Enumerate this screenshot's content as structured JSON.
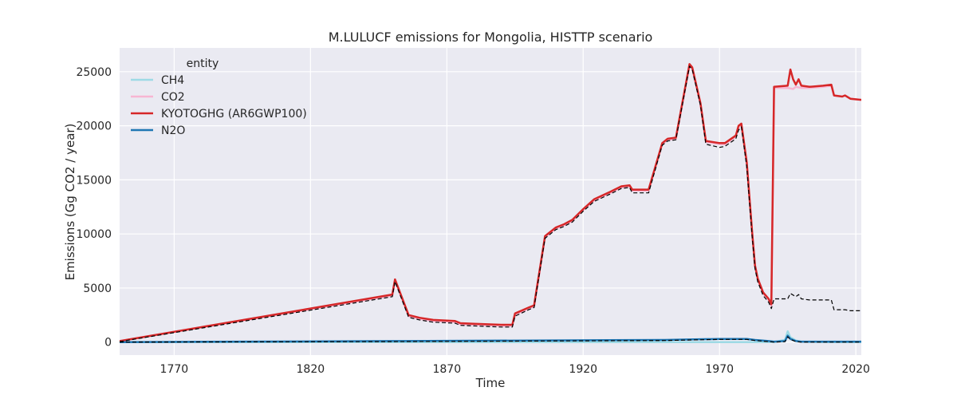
{
  "chart_data": {
    "type": "line",
    "title": "M.LULUCF emissions for Mongolia, HISTTP scenario",
    "xlabel": "Time",
    "ylabel": "Emissions (Gg CO2 / year)",
    "xlim": [
      1750,
      2022
    ],
    "ylim": [
      -1200,
      27200
    ],
    "xticks": [
      1770,
      1820,
      1870,
      1920,
      1970,
      2020
    ],
    "yticks": [
      0,
      5000,
      10000,
      15000,
      20000,
      25000
    ],
    "grid": true,
    "legend": {
      "title": "entity",
      "placement": "top-left"
    },
    "series": [
      {
        "name": "CH4",
        "color": "#9edae5",
        "width": 2.5,
        "points": [
          [
            1750,
            0
          ],
          [
            1850,
            0
          ],
          [
            1900,
            0
          ],
          [
            1950,
            0
          ],
          [
            1980,
            0
          ],
          [
            1990,
            10
          ],
          [
            1994,
            200
          ],
          [
            1995,
            1000
          ],
          [
            1996,
            450
          ],
          [
            1998,
            150
          ],
          [
            2000,
            30
          ],
          [
            2010,
            0
          ],
          [
            2022,
            0
          ]
        ]
      },
      {
        "name": "CO2",
        "color": "#f7b6d2",
        "width": 2.5,
        "points": [
          [
            1750,
            100
          ],
          [
            1850,
            4300
          ],
          [
            1851,
            5700
          ],
          [
            1856,
            2400
          ],
          [
            1860,
            2150
          ],
          [
            1865,
            1950
          ],
          [
            1873,
            1850
          ],
          [
            1875,
            1650
          ],
          [
            1880,
            1600
          ],
          [
            1890,
            1500
          ],
          [
            1894,
            1500
          ],
          [
            1895,
            2550
          ],
          [
            1900,
            3100
          ],
          [
            1902,
            3300
          ],
          [
            1906,
            9700
          ],
          [
            1910,
            10500
          ],
          [
            1913,
            10800
          ],
          [
            1916,
            11200
          ],
          [
            1920,
            12200
          ],
          [
            1924,
            13100
          ],
          [
            1930,
            13800
          ],
          [
            1934,
            14300
          ],
          [
            1937,
            14400
          ],
          [
            1938,
            14000
          ],
          [
            1944,
            14000
          ],
          [
            1949,
            18300
          ],
          [
            1951,
            18700
          ],
          [
            1954,
            18800
          ],
          [
            1959,
            25600
          ],
          [
            1960,
            25300
          ],
          [
            1963,
            22000
          ],
          [
            1965,
            18500
          ],
          [
            1970,
            18300
          ],
          [
            1972,
            18300
          ],
          [
            1976,
            19000
          ],
          [
            1977,
            19900
          ],
          [
            1978,
            20100
          ],
          [
            1980,
            16500
          ],
          [
            1982,
            10000
          ],
          [
            1983,
            7000
          ],
          [
            1984,
            5800
          ],
          [
            1986,
            4500
          ],
          [
            1988,
            3900
          ],
          [
            1989,
            3300
          ],
          [
            1990,
            23500
          ],
          [
            1995,
            23500
          ],
          [
            1997,
            23400
          ],
          [
            1998,
            23600
          ],
          [
            2000,
            23500
          ],
          [
            2003,
            23500
          ],
          [
            2008,
            23600
          ],
          [
            2011,
            23700
          ],
          [
            2012,
            22800
          ],
          [
            2015,
            22700
          ],
          [
            2016,
            22800
          ],
          [
            2018,
            22500
          ],
          [
            2022,
            22400
          ]
        ]
      },
      {
        "name": "KYOTOGHG (AR6GWP100)",
        "color": "#d62728",
        "width": 2.5,
        "points": [
          [
            1750,
            100
          ],
          [
            1850,
            4400
          ],
          [
            1851,
            5800
          ],
          [
            1856,
            2500
          ],
          [
            1860,
            2250
          ],
          [
            1865,
            2050
          ],
          [
            1873,
            1950
          ],
          [
            1875,
            1750
          ],
          [
            1880,
            1700
          ],
          [
            1890,
            1600
          ],
          [
            1894,
            1600
          ],
          [
            1895,
            2650
          ],
          [
            1900,
            3200
          ],
          [
            1902,
            3400
          ],
          [
            1906,
            9800
          ],
          [
            1910,
            10600
          ],
          [
            1913,
            10900
          ],
          [
            1916,
            11300
          ],
          [
            1920,
            12300
          ],
          [
            1924,
            13200
          ],
          [
            1930,
            13900
          ],
          [
            1934,
            14400
          ],
          [
            1937,
            14500
          ],
          [
            1938,
            14100
          ],
          [
            1944,
            14100
          ],
          [
            1949,
            18400
          ],
          [
            1951,
            18800
          ],
          [
            1954,
            18900
          ],
          [
            1959,
            25700
          ],
          [
            1960,
            25400
          ],
          [
            1963,
            22100
          ],
          [
            1965,
            18600
          ],
          [
            1970,
            18400
          ],
          [
            1972,
            18400
          ],
          [
            1976,
            19100
          ],
          [
            1977,
            20000
          ],
          [
            1978,
            20200
          ],
          [
            1980,
            16600
          ],
          [
            1982,
            10100
          ],
          [
            1983,
            7100
          ],
          [
            1984,
            5900
          ],
          [
            1986,
            4600
          ],
          [
            1988,
            4000
          ],
          [
            1989,
            3500
          ],
          [
            1990,
            23600
          ],
          [
            1995,
            23700
          ],
          [
            1996,
            25200
          ],
          [
            1997,
            24300
          ],
          [
            1998,
            23800
          ],
          [
            1999,
            24300
          ],
          [
            2000,
            23700
          ],
          [
            2003,
            23600
          ],
          [
            2008,
            23700
          ],
          [
            2011,
            23800
          ],
          [
            2012,
            22800
          ],
          [
            2015,
            22700
          ],
          [
            2016,
            22800
          ],
          [
            2018,
            22500
          ],
          [
            2022,
            22400
          ]
        ]
      },
      {
        "name": "N2O",
        "color": "#1f77b4",
        "width": 2.5,
        "points": [
          [
            1750,
            0
          ],
          [
            1850,
            100
          ],
          [
            1900,
            150
          ],
          [
            1950,
            200
          ],
          [
            1970,
            300
          ],
          [
            1980,
            300
          ],
          [
            1983,
            200
          ],
          [
            1988,
            100
          ],
          [
            1990,
            50
          ],
          [
            1994,
            100
          ],
          [
            1995,
            600
          ],
          [
            1996,
            300
          ],
          [
            1998,
            100
          ],
          [
            2000,
            50
          ],
          [
            2010,
            50
          ],
          [
            2022,
            50
          ]
        ]
      },
      {
        "name": "",
        "color": "#000000",
        "width": 1.2,
        "dash": "5,3",
        "points": [
          [
            1750,
            50
          ],
          [
            1850,
            4200
          ],
          [
            1851,
            5600
          ],
          [
            1856,
            2300
          ],
          [
            1860,
            2050
          ],
          [
            1865,
            1850
          ],
          [
            1873,
            1750
          ],
          [
            1875,
            1550
          ],
          [
            1880,
            1500
          ],
          [
            1890,
            1400
          ],
          [
            1894,
            1400
          ],
          [
            1895,
            2400
          ],
          [
            1900,
            3000
          ],
          [
            1902,
            3200
          ],
          [
            1906,
            9600
          ],
          [
            1910,
            10400
          ],
          [
            1913,
            10700
          ],
          [
            1916,
            11100
          ],
          [
            1920,
            12100
          ],
          [
            1924,
            13000
          ],
          [
            1930,
            13700
          ],
          [
            1934,
            14200
          ],
          [
            1937,
            14300
          ],
          [
            1938,
            13800
          ],
          [
            1944,
            13800
          ],
          [
            1949,
            18200
          ],
          [
            1951,
            18600
          ],
          [
            1954,
            18700
          ],
          [
            1959,
            25500
          ],
          [
            1960,
            25200
          ],
          [
            1963,
            21900
          ],
          [
            1965,
            18300
          ],
          [
            1970,
            18000
          ],
          [
            1972,
            18100
          ],
          [
            1976,
            18800
          ],
          [
            1977,
            19600
          ],
          [
            1978,
            19900
          ],
          [
            1980,
            16200
          ],
          [
            1982,
            9700
          ],
          [
            1983,
            6800
          ],
          [
            1984,
            5600
          ],
          [
            1986,
            4300
          ],
          [
            1988,
            3700
          ],
          [
            1989,
            3100
          ],
          [
            1990,
            4000
          ],
          [
            1995,
            4000
          ],
          [
            1996,
            4500
          ],
          [
            1998,
            4200
          ],
          [
            1999,
            4400
          ],
          [
            2000,
            4000
          ],
          [
            2003,
            3900
          ],
          [
            2011,
            3900
          ],
          [
            2012,
            3000
          ],
          [
            2016,
            3000
          ],
          [
            2018,
            2900
          ],
          [
            2022,
            2900
          ]
        ]
      },
      {
        "name": "",
        "color": "#000000",
        "width": 1.2,
        "dash": "5,3",
        "points": [
          [
            1750,
            0
          ],
          [
            1850,
            50
          ],
          [
            1900,
            100
          ],
          [
            1950,
            150
          ],
          [
            1970,
            250
          ],
          [
            1980,
            250
          ],
          [
            1983,
            150
          ],
          [
            1988,
            50
          ],
          [
            1990,
            0
          ],
          [
            1994,
            50
          ],
          [
            1995,
            500
          ],
          [
            1996,
            250
          ],
          [
            1998,
            50
          ],
          [
            2000,
            0
          ],
          [
            2022,
            0
          ]
        ]
      }
    ]
  }
}
